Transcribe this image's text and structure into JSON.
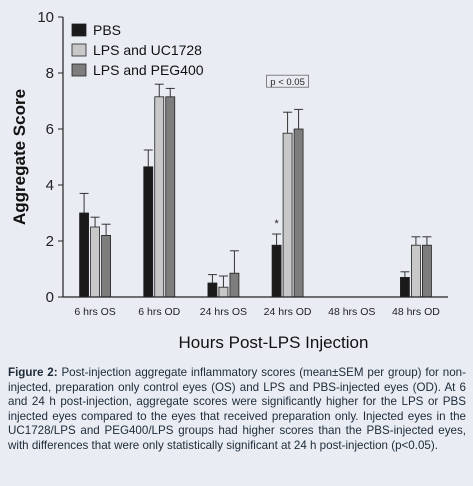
{
  "chart_data": {
    "type": "bar",
    "categories": [
      "6 hrs OS",
      "6 hrs OD",
      "24 hrs OS",
      "24 hrs OD",
      "48 hrs OS",
      "48 hrs OD"
    ],
    "series": [
      {
        "name": "PBS",
        "color": "#1a1a1a",
        "values": [
          3.0,
          4.65,
          0.5,
          1.85,
          null,
          0.7
        ],
        "errors": [
          0.7,
          0.6,
          0.3,
          0.4,
          null,
          0.2
        ]
      },
      {
        "name": "LPS and UC1728",
        "color": "#c8c8c8",
        "values": [
          2.5,
          7.15,
          0.35,
          5.85,
          null,
          1.85
        ],
        "errors": [
          0.35,
          0.45,
          0.4,
          0.75,
          null,
          0.3
        ]
      },
      {
        "name": "LPS and PEG400",
        "color": "#7d7d7d",
        "values": [
          2.2,
          7.15,
          0.85,
          6.0,
          null,
          1.85
        ],
        "errors": [
          0.4,
          0.3,
          0.8,
          0.7,
          null,
          0.3
        ]
      }
    ],
    "ylim": [
      0,
      10
    ],
    "yticks": [
      0,
      2,
      4,
      6,
      8,
      10
    ],
    "xlabel": "Hours Post-LPS Injection",
    "ylabel": "Aggregate Score",
    "legend_position": "top-left",
    "annotations": [
      {
        "text": "p < 0.05",
        "category": "24 hrs OD",
        "y": 7.6
      },
      {
        "text": "*",
        "category": "24 hrs OD",
        "series": "PBS",
        "y": 2.5
      }
    ],
    "grid": false
  },
  "caption": {
    "label": "Figure 2:",
    "text": "Post-injection aggregate inflammatory scores (mean±SEM per group) for non-injected, preparation only control eyes (OS) and LPS and PBS-injected eyes (OD). At 6 and 24 h post-injection, aggregate scores were significantly higher for the LPS or PBS injected eyes compared to the eyes that received preparation only. Injected eyes in the UC1728/LPS and PEG400/LPS groups had higher scores than the PBS-injected eyes, with differences that were only statistically significant at 24 h post-injection (p<0.05)."
  }
}
